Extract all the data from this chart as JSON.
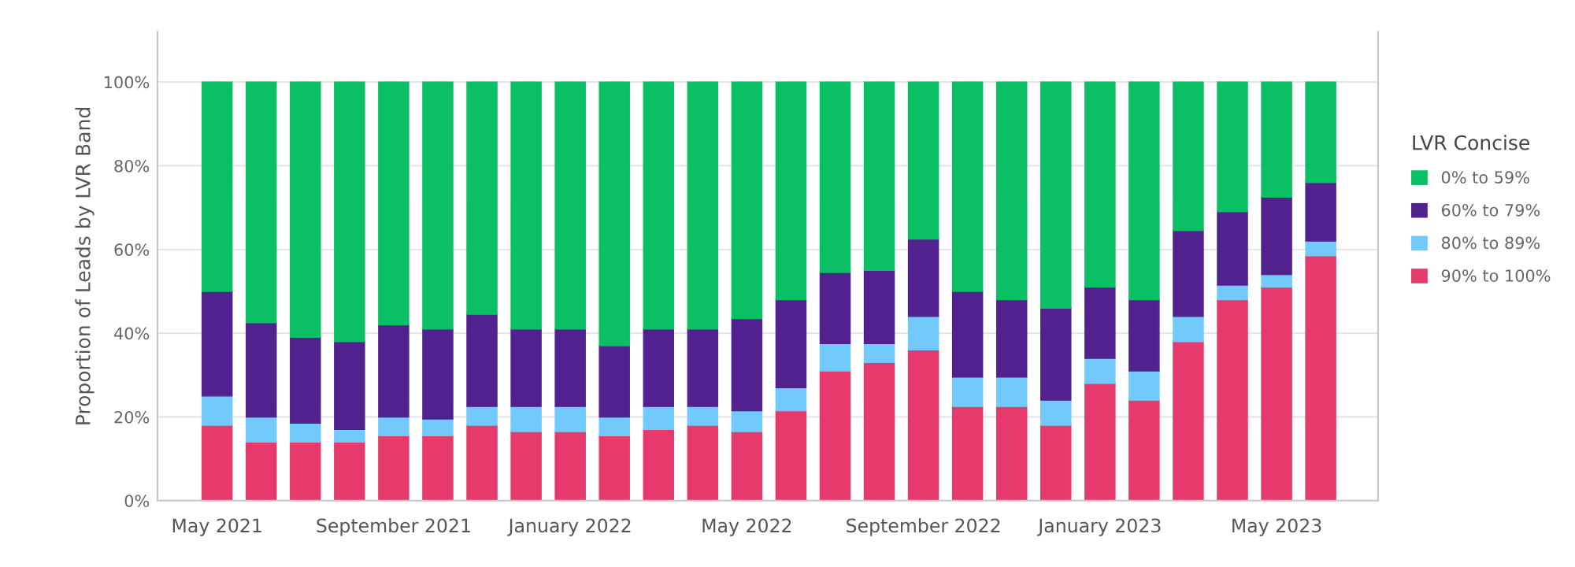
{
  "chart_data": {
    "type": "bar",
    "stacked": true,
    "ylabel": "Proportion of Leads by LVR Band",
    "legend_title": "LVR Concise",
    "legend": "right",
    "grid": "y",
    "categories": [
      "May 2021",
      null,
      null,
      null,
      "September 2021",
      null,
      null,
      null,
      "January 2022",
      null,
      null,
      null,
      "May 2022",
      null,
      null,
      null,
      "September 2022",
      null,
      null,
      null,
      "January 2023",
      null,
      null,
      null,
      "May 2023",
      null
    ],
    "ylim": [
      0,
      112
    ],
    "yticks": [
      {
        "value": 0,
        "label": "0%"
      },
      {
        "value": 20,
        "label": "20%"
      },
      {
        "value": 40,
        "label": "40%"
      },
      {
        "value": 60,
        "label": "60%"
      },
      {
        "value": 80,
        "label": "80%"
      },
      {
        "value": 100,
        "label": "100%"
      }
    ],
    "series": [
      {
        "name": "90% to 100%",
        "color": "#e63a6c",
        "values": [
          18,
          14,
          14,
          14,
          15.5,
          15.5,
          18,
          16.5,
          16.5,
          15.5,
          17,
          18,
          16.5,
          21.5,
          31,
          33,
          36,
          22.5,
          22.5,
          18,
          28,
          24,
          38,
          48,
          51,
          58.5
        ]
      },
      {
        "name": "80% to 89%",
        "color": "#72c9fb",
        "values": [
          7,
          6,
          4.5,
          3,
          4.5,
          4,
          4.5,
          6,
          6,
          4.5,
          5.5,
          4.5,
          5,
          5.5,
          6.5,
          4.5,
          8,
          7,
          7,
          6,
          6,
          7,
          6,
          3.5,
          3,
          3.5
        ]
      },
      {
        "name": "60% to 79%",
        "color": "#51228f",
        "values": [
          25,
          22.5,
          20.5,
          21,
          22,
          21.5,
          22,
          18.5,
          18.5,
          17,
          18.5,
          18.5,
          22,
          21,
          17,
          17.5,
          18.5,
          20.5,
          18.5,
          22,
          17,
          17,
          20.5,
          17.5,
          18.5,
          14
        ]
      },
      {
        "name": "0% to 59%",
        "color": "#0bbf64",
        "values": [
          50,
          57.5,
          61,
          62,
          58,
          59,
          55.5,
          59,
          59,
          63,
          59,
          59,
          56.5,
          52,
          45.5,
          45,
          37.5,
          50,
          52,
          54,
          49,
          52,
          35.5,
          31,
          27.5,
          24
        ]
      }
    ]
  }
}
